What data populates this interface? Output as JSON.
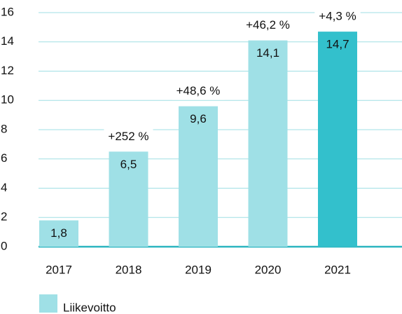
{
  "chart_data": {
    "type": "bar",
    "categories": [
      "2017",
      "2018",
      "2019",
      "2020",
      "2021"
    ],
    "values": [
      1.8,
      6.5,
      9.6,
      14.1,
      14.7
    ],
    "value_labels": [
      "1,8",
      "6,5",
      "9,6",
      "14,1",
      "14,7"
    ],
    "annotations": [
      null,
      "+252 %",
      "+48,6 %",
      "+46,2 %",
      "+4,3 %"
    ],
    "colors": [
      "#9fe0e6",
      "#9fe0e6",
      "#9fe0e6",
      "#9fe0e6",
      "#33c0cc"
    ],
    "series_name": "Liikevoitto",
    "legend_color": "#9fe0e6",
    "ylim": [
      0,
      16
    ],
    "yticks": [
      0,
      2,
      4,
      6,
      8,
      10,
      12,
      14,
      16
    ],
    "grid": true
  }
}
